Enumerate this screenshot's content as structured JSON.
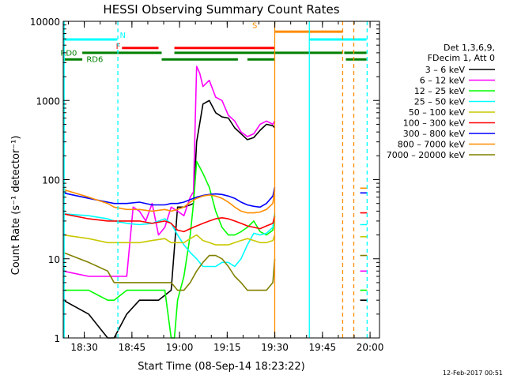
{
  "chart_data": {
    "type": "line",
    "title": "HESSI Observing Summary Count Rates",
    "xlabel": "Start Time (08-Sep-14 18:23:22)",
    "ylabel": "Count Rate (s⁻¹ detector⁻¹)",
    "x_start": "18:23:22",
    "x_end": "20:03:00",
    "xlim_minutes": [
      0,
      99.6
    ],
    "x_ticks": [
      {
        "label": "18:30",
        "min": 6.63
      },
      {
        "label": "18:45",
        "min": 21.63
      },
      {
        "label": "19:00",
        "min": 36.63
      },
      {
        "label": "19:15",
        "min": 51.63
      },
      {
        "label": "19:30",
        "min": 66.63
      },
      {
        "label": "19:45",
        "min": 81.63
      },
      {
        "label": "20:00",
        "min": 96.63
      }
    ],
    "y_scale": "log",
    "ylim": [
      1,
      10000
    ],
    "y_ticks": [
      {
        "label": "1",
        "v": 1
      },
      {
        "label": "10",
        "v": 10
      },
      {
        "label": "100",
        "v": 100
      },
      {
        "label": "1000",
        "v": 1000
      },
      {
        "label": "10000",
        "v": 10000
      }
    ],
    "legend_header": [
      "Det 1,3,6,9,",
      "FDecim 1, Att 0"
    ],
    "legend_position": "right",
    "series": [
      {
        "name": "3 – 6 keV",
        "color": "#000000",
        "x": [
          0,
          8,
          14,
          16,
          20,
          24,
          28,
          30,
          34,
          36,
          38,
          40,
          41,
          42,
          44,
          46,
          48,
          50,
          52,
          54,
          56,
          58,
          60,
          62,
          64,
          66,
          66.6,
          74,
          76,
          77.5,
          88,
          90,
          91.5,
          93.5,
          95,
          95.7
        ],
        "y": [
          3,
          2,
          1,
          1,
          2,
          3,
          3,
          3,
          4,
          45,
          45,
          48,
          50,
          300,
          900,
          1000,
          700,
          620,
          600,
          450,
          380,
          320,
          340,
          420,
          500,
          480,
          450,
          null,
          null,
          null,
          null,
          null,
          null,
          3,
          3,
          3
        ]
      },
      {
        "name": "6 – 12 keV",
        "color": "#ff00ff",
        "x": [
          0,
          8,
          14,
          16,
          20,
          22,
          24,
          26,
          28,
          30,
          32,
          34,
          36,
          38,
          40,
          41,
          42,
          43,
          44,
          46,
          48,
          50,
          52,
          54,
          56,
          58,
          60,
          62,
          64,
          66,
          66.6,
          74,
          76,
          77.5,
          88,
          90,
          91.5,
          93.5,
          95,
          95.7
        ],
        "y": [
          7,
          6,
          6,
          6,
          6,
          45,
          40,
          30,
          50,
          20,
          25,
          45,
          40,
          35,
          60,
          70,
          2700,
          2200,
          1500,
          1800,
          1100,
          1000,
          650,
          550,
          400,
          350,
          380,
          500,
          550,
          500,
          550,
          null,
          null,
          null,
          null,
          null,
          null,
          7,
          7,
          7
        ]
      },
      {
        "name": "12 – 25 keV",
        "color": "#00ff00",
        "x": [
          0,
          8,
          14,
          16,
          20,
          24,
          28,
          32,
          34,
          35,
          36,
          38,
          40,
          41,
          42,
          44,
          46,
          48,
          50,
          52,
          54,
          56,
          58,
          60,
          62,
          64,
          66,
          66.6,
          74,
          76,
          77.5,
          88,
          90,
          91.5,
          93.5,
          95,
          95.7
        ],
        "y": [
          4,
          4,
          3,
          3,
          4,
          4,
          4,
          4,
          1,
          1,
          3,
          6,
          20,
          50,
          170,
          120,
          80,
          40,
          25,
          20,
          20,
          22,
          25,
          30,
          22,
          20,
          23,
          35,
          null,
          null,
          null,
          null,
          null,
          null,
          4,
          4,
          4
        ]
      },
      {
        "name": "25 – 50 keV",
        "color": "#00ffff",
        "x": [
          0,
          8,
          14,
          16,
          20,
          24,
          28,
          32,
          34,
          36,
          38,
          40,
          42,
          44,
          46,
          48,
          50,
          52,
          54,
          56,
          58,
          60,
          62,
          64,
          66,
          66.6,
          74,
          76,
          77.5,
          88,
          90,
          91.5,
          93.5,
          95,
          95.7
        ],
        "y": [
          37,
          35,
          32,
          30,
          28,
          27,
          28,
          32,
          28,
          20,
          15,
          12,
          10,
          8,
          8,
          8,
          9,
          9,
          8,
          10,
          15,
          21,
          20,
          21,
          25,
          38,
          null,
          null,
          null,
          null,
          null,
          null,
          27,
          27,
          27
        ]
      },
      {
        "name": "50 – 100 keV",
        "color": "#c8c800",
        "x": [
          0,
          8,
          14,
          16,
          20,
          24,
          28,
          32,
          34,
          36,
          38,
          40,
          42,
          44,
          46,
          48,
          50,
          52,
          54,
          56,
          58,
          60,
          62,
          64,
          66,
          66.6,
          74,
          76,
          77.5,
          88,
          90,
          91.5,
          93.5,
          95,
          95.7
        ],
        "y": [
          20,
          18,
          16,
          16,
          16,
          16,
          17,
          18,
          16,
          16,
          16,
          18,
          20,
          17,
          16,
          15,
          15,
          15,
          16,
          17,
          18,
          17,
          16,
          16,
          17,
          20,
          null,
          null,
          null,
          null,
          null,
          null,
          19,
          19,
          19
        ]
      },
      {
        "name": "100 – 300 keV",
        "color": "#ff0000",
        "x": [
          0,
          8,
          14,
          16,
          20,
          24,
          28,
          32,
          34,
          36,
          38,
          40,
          42,
          44,
          46,
          48,
          50,
          52,
          54,
          56,
          58,
          60,
          62,
          64,
          66,
          66.6,
          74,
          76,
          77.5,
          88,
          90,
          91.5,
          93.5,
          95,
          95.7
        ],
        "y": [
          37,
          32,
          30,
          30,
          30,
          30,
          28,
          30,
          28,
          23,
          22,
          24,
          26,
          28,
          30,
          32,
          33,
          32,
          30,
          28,
          26,
          25,
          24,
          26,
          28,
          35,
          null,
          null,
          null,
          null,
          null,
          null,
          38,
          38,
          38
        ]
      },
      {
        "name": "300 – 800 keV",
        "color": "#0000ff",
        "x": [
          0,
          8,
          14,
          16,
          20,
          24,
          28,
          32,
          34,
          36,
          38,
          40,
          42,
          44,
          46,
          48,
          50,
          52,
          54,
          56,
          58,
          60,
          62,
          64,
          66,
          66.6,
          74,
          76,
          77.5,
          88,
          90,
          91.5,
          93.5,
          95,
          95.7
        ],
        "y": [
          68,
          58,
          52,
          50,
          50,
          52,
          48,
          48,
          50,
          50,
          52,
          56,
          60,
          63,
          65,
          66,
          65,
          62,
          58,
          52,
          48,
          46,
          45,
          50,
          62,
          80,
          null,
          null,
          null,
          null,
          null,
          null,
          68,
          68,
          68
        ]
      },
      {
        "name": "800 – 7000 keV",
        "color": "#ff8c00",
        "x": [
          0,
          8,
          14,
          16,
          20,
          24,
          28,
          32,
          34,
          36,
          38,
          40,
          42,
          44,
          46,
          48,
          50,
          52,
          54,
          56,
          58,
          60,
          62,
          64,
          66,
          66.6,
          74,
          76,
          77.5,
          88,
          90,
          91.5,
          93.5,
          95,
          95.7
        ],
        "y": [
          75,
          60,
          50,
          45,
          42,
          42,
          40,
          42,
          40,
          42,
          45,
          52,
          58,
          62,
          64,
          62,
          58,
          52,
          45,
          40,
          38,
          38,
          39,
          42,
          50,
          75,
          null,
          null,
          null,
          null,
          null,
          null,
          78,
          78,
          78
        ]
      },
      {
        "name": "7000 – 20000 keV",
        "color": "#808000",
        "x": [
          0,
          8,
          14,
          16,
          20,
          24,
          28,
          32,
          34,
          36,
          38,
          40,
          42,
          44,
          46,
          48,
          50,
          52,
          54,
          56,
          58,
          60,
          62,
          64,
          66,
          66.6,
          74,
          76,
          77.5,
          88,
          90,
          91.5,
          93.5,
          95,
          95.7
        ],
        "y": [
          12,
          9,
          7,
          5,
          5,
          5,
          5,
          5,
          5,
          4,
          4,
          5,
          7,
          9,
          11,
          11,
          10,
          8,
          6,
          5,
          4,
          4,
          4,
          4,
          5,
          10,
          null,
          null,
          null,
          null,
          null,
          null,
          11,
          11,
          11
        ]
      }
    ],
    "annotations": [
      {
        "text": "N",
        "color": "#00ffff"
      },
      {
        "text": "F",
        "color": "#ff0000"
      },
      {
        "text": "S",
        "color": "#ff8c00"
      },
      {
        "text": "RD0",
        "color": "#008000"
      },
      {
        "text": "RD6",
        "color": "#008000"
      }
    ],
    "flag_bars": [
      {
        "label": "N",
        "color": "#00ffff",
        "y": 5900,
        "segments": [
          [
            0,
            17
          ],
          [
            77.5,
            95.5
          ]
        ]
      },
      {
        "label": "F",
        "color": "#ff0000",
        "y": 4600,
        "segments": [
          [
            18.5,
            30
          ],
          [
            35,
            66.6
          ]
        ]
      },
      {
        "label": "S",
        "color": "#ff8c00",
        "y": 7400,
        "segments": [
          [
            66.6,
            88
          ]
        ]
      },
      {
        "label": "RD0",
        "color": "#008000",
        "y": 4000,
        "segments": [
          [
            6,
            31
          ],
          [
            35,
            88
          ],
          [
            88.5,
            95.5
          ]
        ]
      },
      {
        "label": "RD6",
        "color": "#008000",
        "y": 3300,
        "segments": [
          [
            0,
            6
          ],
          [
            31,
            55
          ],
          [
            58,
            66.6
          ],
          [
            89,
            95.5
          ]
        ]
      }
    ],
    "vertical_lines": [
      {
        "x": 0.3,
        "color": "#00ffff",
        "style": "solid"
      },
      {
        "x": 17.2,
        "color": "#00ffff",
        "style": "dashed"
      },
      {
        "x": 66.6,
        "color": "#ff8c00",
        "style": "solid"
      },
      {
        "x": 77.5,
        "color": "#00ffff",
        "style": "solid"
      },
      {
        "x": 88,
        "color": "#ff8c00",
        "style": "dashed"
      },
      {
        "x": 91.5,
        "color": "#ff8c00",
        "style": "dashed"
      },
      {
        "x": 95.7,
        "color": "#00ffff",
        "style": "dashed"
      }
    ],
    "grid": false
  },
  "footer": {
    "date_stamp": "12-Feb-2017 00:51"
  }
}
